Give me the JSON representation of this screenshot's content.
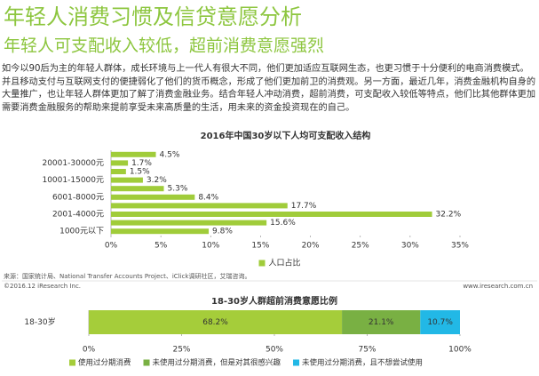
{
  "header": {
    "title": "年轻人消费习惯及信贷意愿分析",
    "subtitle": "年轻人可支配收入较低，超前消费意愿强烈"
  },
  "body": "如今以90后为主的年轻人群体，成长环境与上一代人有很大不同，他们更加适应互联网生态，也更习惯于十分便利的电商消费模式。并且移动支付与互联网支付的便捷弱化了他们的货币概念，形成了他们更加前卫的消费观。另一方面，最近几年，消费金融机构自身的大量推广，也让年轻人群体更加了解了消费金融业务。结合年轻人冲动消费，超前消费，可支配收入较低等特点，他们比其他群体更加需要消费金融服务的帮助来提前享受未来高质量的生活，用未来的资金投资现在的自己。",
  "footer": {
    "source": "来源：国家统计局、National Transfer Accounts Project、iClick调研社区，艾瑞咨询。",
    "copyright": "©2016.12 iResearch Inc.",
    "url": "www.iresearch.com.cn"
  },
  "chart_data": [
    {
      "type": "bar",
      "title": "2016年中国30岁以下人均可支配收入结构",
      "categories": [
        null,
        "20001-30000元",
        null,
        "10001-15000元",
        null,
        "6001-8000元",
        null,
        "2001-4000元",
        null,
        "1000元以下"
      ],
      "series": [
        {
          "name": "人口占比",
          "color": "#a0cc3a",
          "values": [
            4.5,
            1.7,
            1.5,
            3.2,
            5.3,
            8.4,
            17.7,
            32.2,
            15.6,
            9.8
          ],
          "value_labels": [
            "4.5%",
            "1.7%",
            "1.5%",
            "3.2%",
            "5.3%",
            "8.4%",
            "17.7%",
            "32.2%",
            "15.6%",
            "9.8%"
          ]
        }
      ],
      "xlim": [
        0,
        35
      ],
      "xticks": [
        {
          "value": 0,
          "label": "0%"
        },
        {
          "value": 5,
          "label": "5%"
        },
        {
          "value": 10,
          "label": "10%"
        },
        {
          "value": 15,
          "label": "15%"
        },
        {
          "value": 20,
          "label": "20%"
        },
        {
          "value": 25,
          "label": "25%"
        },
        {
          "value": 30,
          "label": "30%"
        },
        {
          "value": 35,
          "label": "35%"
        }
      ]
    },
    {
      "type": "stacked_bar",
      "title": "18-30岁人群超前消费意愿比例",
      "categories": [
        "18-30岁"
      ],
      "series": [
        {
          "name": "使用过分期消费",
          "color": "#a5cd3a",
          "values": [
            68.2
          ],
          "value_labels": [
            "68.2%"
          ]
        },
        {
          "name": "未使用过分期消费，但是对其很感兴趣",
          "color": "#79b043",
          "values": [
            21.1
          ],
          "value_labels": [
            "21.1%"
          ]
        },
        {
          "name": "未使用过分期消费，且不想尝试使用",
          "color": "#22b8e6",
          "values": [
            10.7
          ],
          "value_labels": [
            "10.7%"
          ]
        }
      ],
      "xlim": [
        0,
        100
      ],
      "xticks": [
        {
          "value": 0,
          "label": "0%"
        },
        {
          "value": 25,
          "label": "25%"
        },
        {
          "value": 50,
          "label": "50%"
        },
        {
          "value": 75,
          "label": "75%"
        },
        {
          "value": 100,
          "label": "100%"
        }
      ]
    }
  ]
}
